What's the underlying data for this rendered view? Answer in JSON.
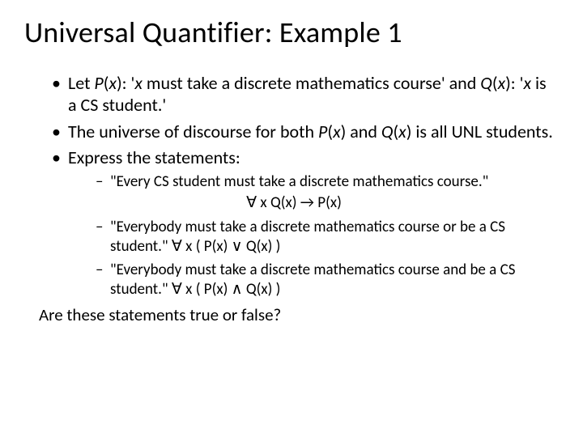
{
  "title": "Universal Quantifier: Example 1",
  "bullets": {
    "b1_a": "Let ",
    "b1_b": "P",
    "b1_c": "(",
    "b1_d": "x",
    "b1_e": "): '",
    "b1_f": "x",
    "b1_g": " must take a discrete mathematics course' and ",
    "b1_h": "Q",
    "b1_i": "(",
    "b1_j": "x",
    "b1_k": "): '",
    "b1_l": "x",
    "b1_m": " is a CS student.'",
    "b2_a": "The universe of discourse for both ",
    "b2_b": "P",
    "b2_c": "(",
    "b2_d": "x",
    "b2_e": ") and ",
    "b2_f": "Q",
    "b2_g": "(",
    "b2_h": "x",
    "b2_i": ") is all UNL students.",
    "b3": "Express the statements:"
  },
  "sub": {
    "s1_text": "\"Every CS student must take a discrete mathematics course.\"",
    "s1_formula": "∀ x Q(x) → P(x)",
    "s2_text": "\"Everybody must take a discrete mathematics course or be a CS student.\"  ",
    "s2_formula": "∀ x  ( P(x) ∨ Q(x) )",
    "s3_text": "\"Everybody must take a discrete mathematics course and be a CS student.\"  ",
    "s3_formula": "∀ x ( P(x) ∧ Q(x) )"
  },
  "closing": "Are these statements true or false?"
}
